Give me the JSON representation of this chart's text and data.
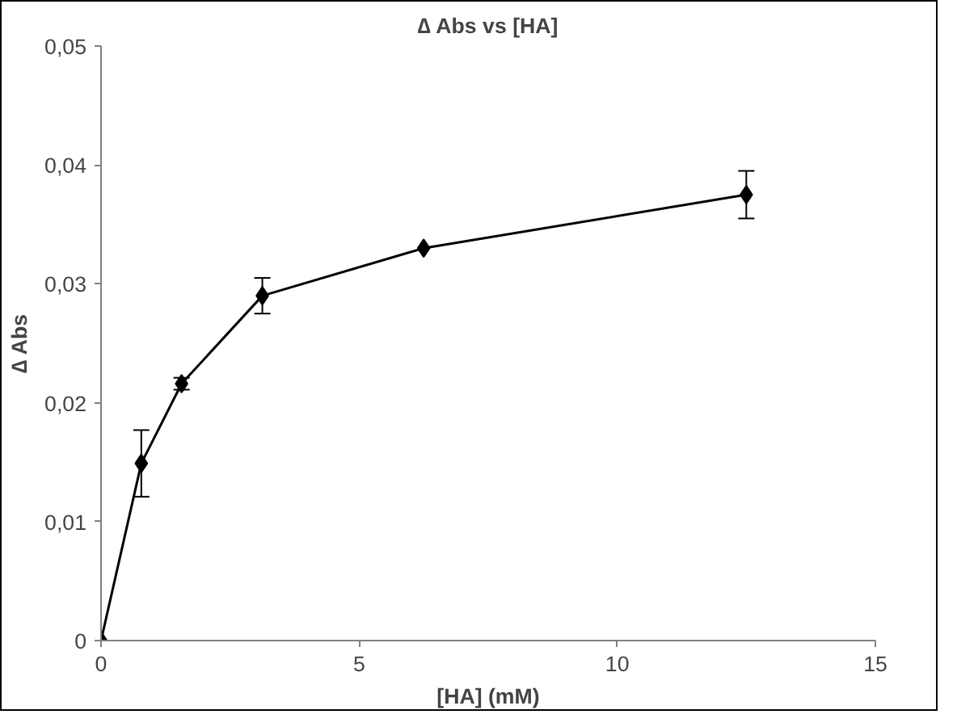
{
  "chart_data": {
    "type": "line",
    "title": "∆ Abs vs [HA]",
    "xlabel": "[HA] (mM)",
    "ylabel": "∆ Abs",
    "x": [
      0,
      0.78,
      1.56,
      3.125,
      6.25,
      12.5
    ],
    "series": [
      {
        "color": "#000000",
        "values": [
          0,
          0.0149,
          0.0216,
          0.029,
          0.033,
          0.0375
        ],
        "errors": [
          null,
          0.0028,
          0.0005,
          0.0015,
          null,
          0.002
        ]
      }
    ],
    "xlim": [
      0,
      15
    ],
    "xticks": [
      0,
      5,
      10,
      15
    ],
    "ylim": [
      0,
      0.05
    ],
    "yticks": [
      {
        "value": 0,
        "label": "0"
      },
      {
        "value": 0.01,
        "label": "0,01"
      },
      {
        "value": 0.02,
        "label": "0,02"
      },
      {
        "value": 0.03,
        "label": "0,03"
      },
      {
        "value": 0.04,
        "label": "0,04"
      },
      {
        "value": 0.05,
        "label": "0,05"
      }
    ],
    "marker": "diamond",
    "line_style": "solid",
    "grid": false
  }
}
